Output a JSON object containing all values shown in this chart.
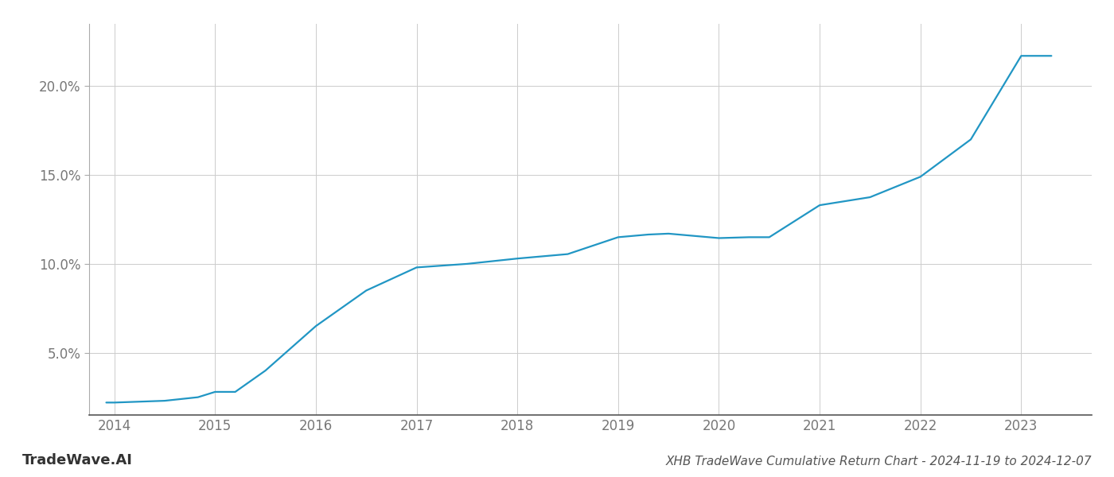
{
  "x_values": [
    2013.92,
    2014.0,
    2014.5,
    2014.83,
    2015.0,
    2015.2,
    2015.5,
    2016.0,
    2016.5,
    2017.0,
    2017.5,
    2018.0,
    2018.5,
    2019.0,
    2019.3,
    2019.5,
    2020.0,
    2020.3,
    2020.5,
    2021.0,
    2021.5,
    2022.0,
    2022.5,
    2023.0,
    2023.3
  ],
  "y_values": [
    2.2,
    2.2,
    2.3,
    2.5,
    2.8,
    2.8,
    4.0,
    6.5,
    8.5,
    9.8,
    10.0,
    10.3,
    10.55,
    11.5,
    11.65,
    11.7,
    11.45,
    11.5,
    11.5,
    13.3,
    13.75,
    14.9,
    17.0,
    21.7,
    21.7
  ],
  "line_color": "#2196c4",
  "line_width": 1.6,
  "background_color": "#ffffff",
  "grid_color": "#cccccc",
  "title": "XHB TradeWave Cumulative Return Chart - 2024-11-19 to 2024-12-07",
  "watermark": "TradeWave.AI",
  "yticks": [
    5.0,
    10.0,
    15.0,
    20.0
  ],
  "ytick_labels": [
    "5.0%",
    "10.0%",
    "15.0%",
    "20.0%"
  ],
  "xticks": [
    2014,
    2015,
    2016,
    2017,
    2018,
    2019,
    2020,
    2021,
    2022,
    2023
  ],
  "xlim": [
    2013.75,
    2023.7
  ],
  "ylim": [
    1.5,
    23.5
  ],
  "title_fontsize": 11,
  "tick_fontsize": 12,
  "watermark_fontsize": 13
}
